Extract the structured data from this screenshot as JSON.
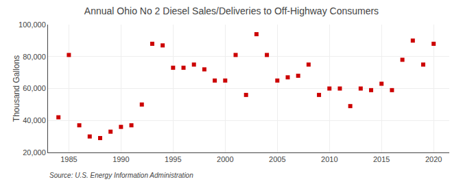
{
  "chart_data": {
    "type": "scatter",
    "title": "Annual Ohio No 2 Diesel Sales/Deliveries to Off-Highway Consumers",
    "ylabel": "Thousand Gallons",
    "annotations": [
      "Source: U.S. Energy Information Administration"
    ],
    "x": [
      1984,
      1985,
      1986,
      1987,
      1988,
      1989,
      1990,
      1991,
      1992,
      1993,
      1994,
      1995,
      1996,
      1997,
      1998,
      1999,
      2000,
      2001,
      2002,
      2003,
      2004,
      2005,
      2006,
      2007,
      2008,
      2009,
      2010,
      2011,
      2012,
      2013,
      2014,
      2015,
      2016,
      2017,
      2018,
      2019,
      2020
    ],
    "values": [
      42000,
      81000,
      37000,
      30000,
      29000,
      33000,
      36000,
      37000,
      50000,
      88000,
      87000,
      73000,
      73000,
      75000,
      72000,
      65000,
      65000,
      81000,
      56000,
      94000,
      81000,
      65000,
      67000,
      68000,
      75000,
      56000,
      60000,
      60000,
      49000,
      60000,
      59000,
      63000,
      59000,
      78000,
      90000,
      75000,
      88000
    ],
    "color": "#cc0000",
    "marker": "square",
    "xlim": [
      1983,
      2021.5
    ],
    "xticks": [
      1985,
      1990,
      1995,
      2000,
      2005,
      2010,
      2015,
      2020
    ],
    "ylim": [
      20000,
      100000
    ],
    "yticks": [
      {
        "value": 20000,
        "label": "20,000"
      },
      {
        "value": 40000,
        "label": "40,000"
      },
      {
        "value": 60000,
        "label": "60,000"
      },
      {
        "value": 80000,
        "label": "80,000"
      },
      {
        "value": 100000,
        "label": "100,000"
      }
    ],
    "grid": true
  }
}
